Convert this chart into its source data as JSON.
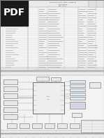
{
  "bg_color": "#c8c8c8",
  "page_bg": "#f0f0f0",
  "page_bg2": "#f2f2f2",
  "border_color": "#999999",
  "line_color": "#888888",
  "text_color": "#444444",
  "dark_text": "#222222",
  "pdf_badge_bg": "#1a1a1a",
  "pdf_badge_text": "#ffffff",
  "title_top": "SCHEM, MLB, (2P/4P) - Kepler - 2 Phase, J 31",
  "subtitle1": "MLB # / PCB #'S",
  "subtitle2": "MLB #: 39-P8 #",
  "row_color": "#bbbbbb",
  "col_color": "#aaaaaa",
  "table_line": "#cccccc"
}
